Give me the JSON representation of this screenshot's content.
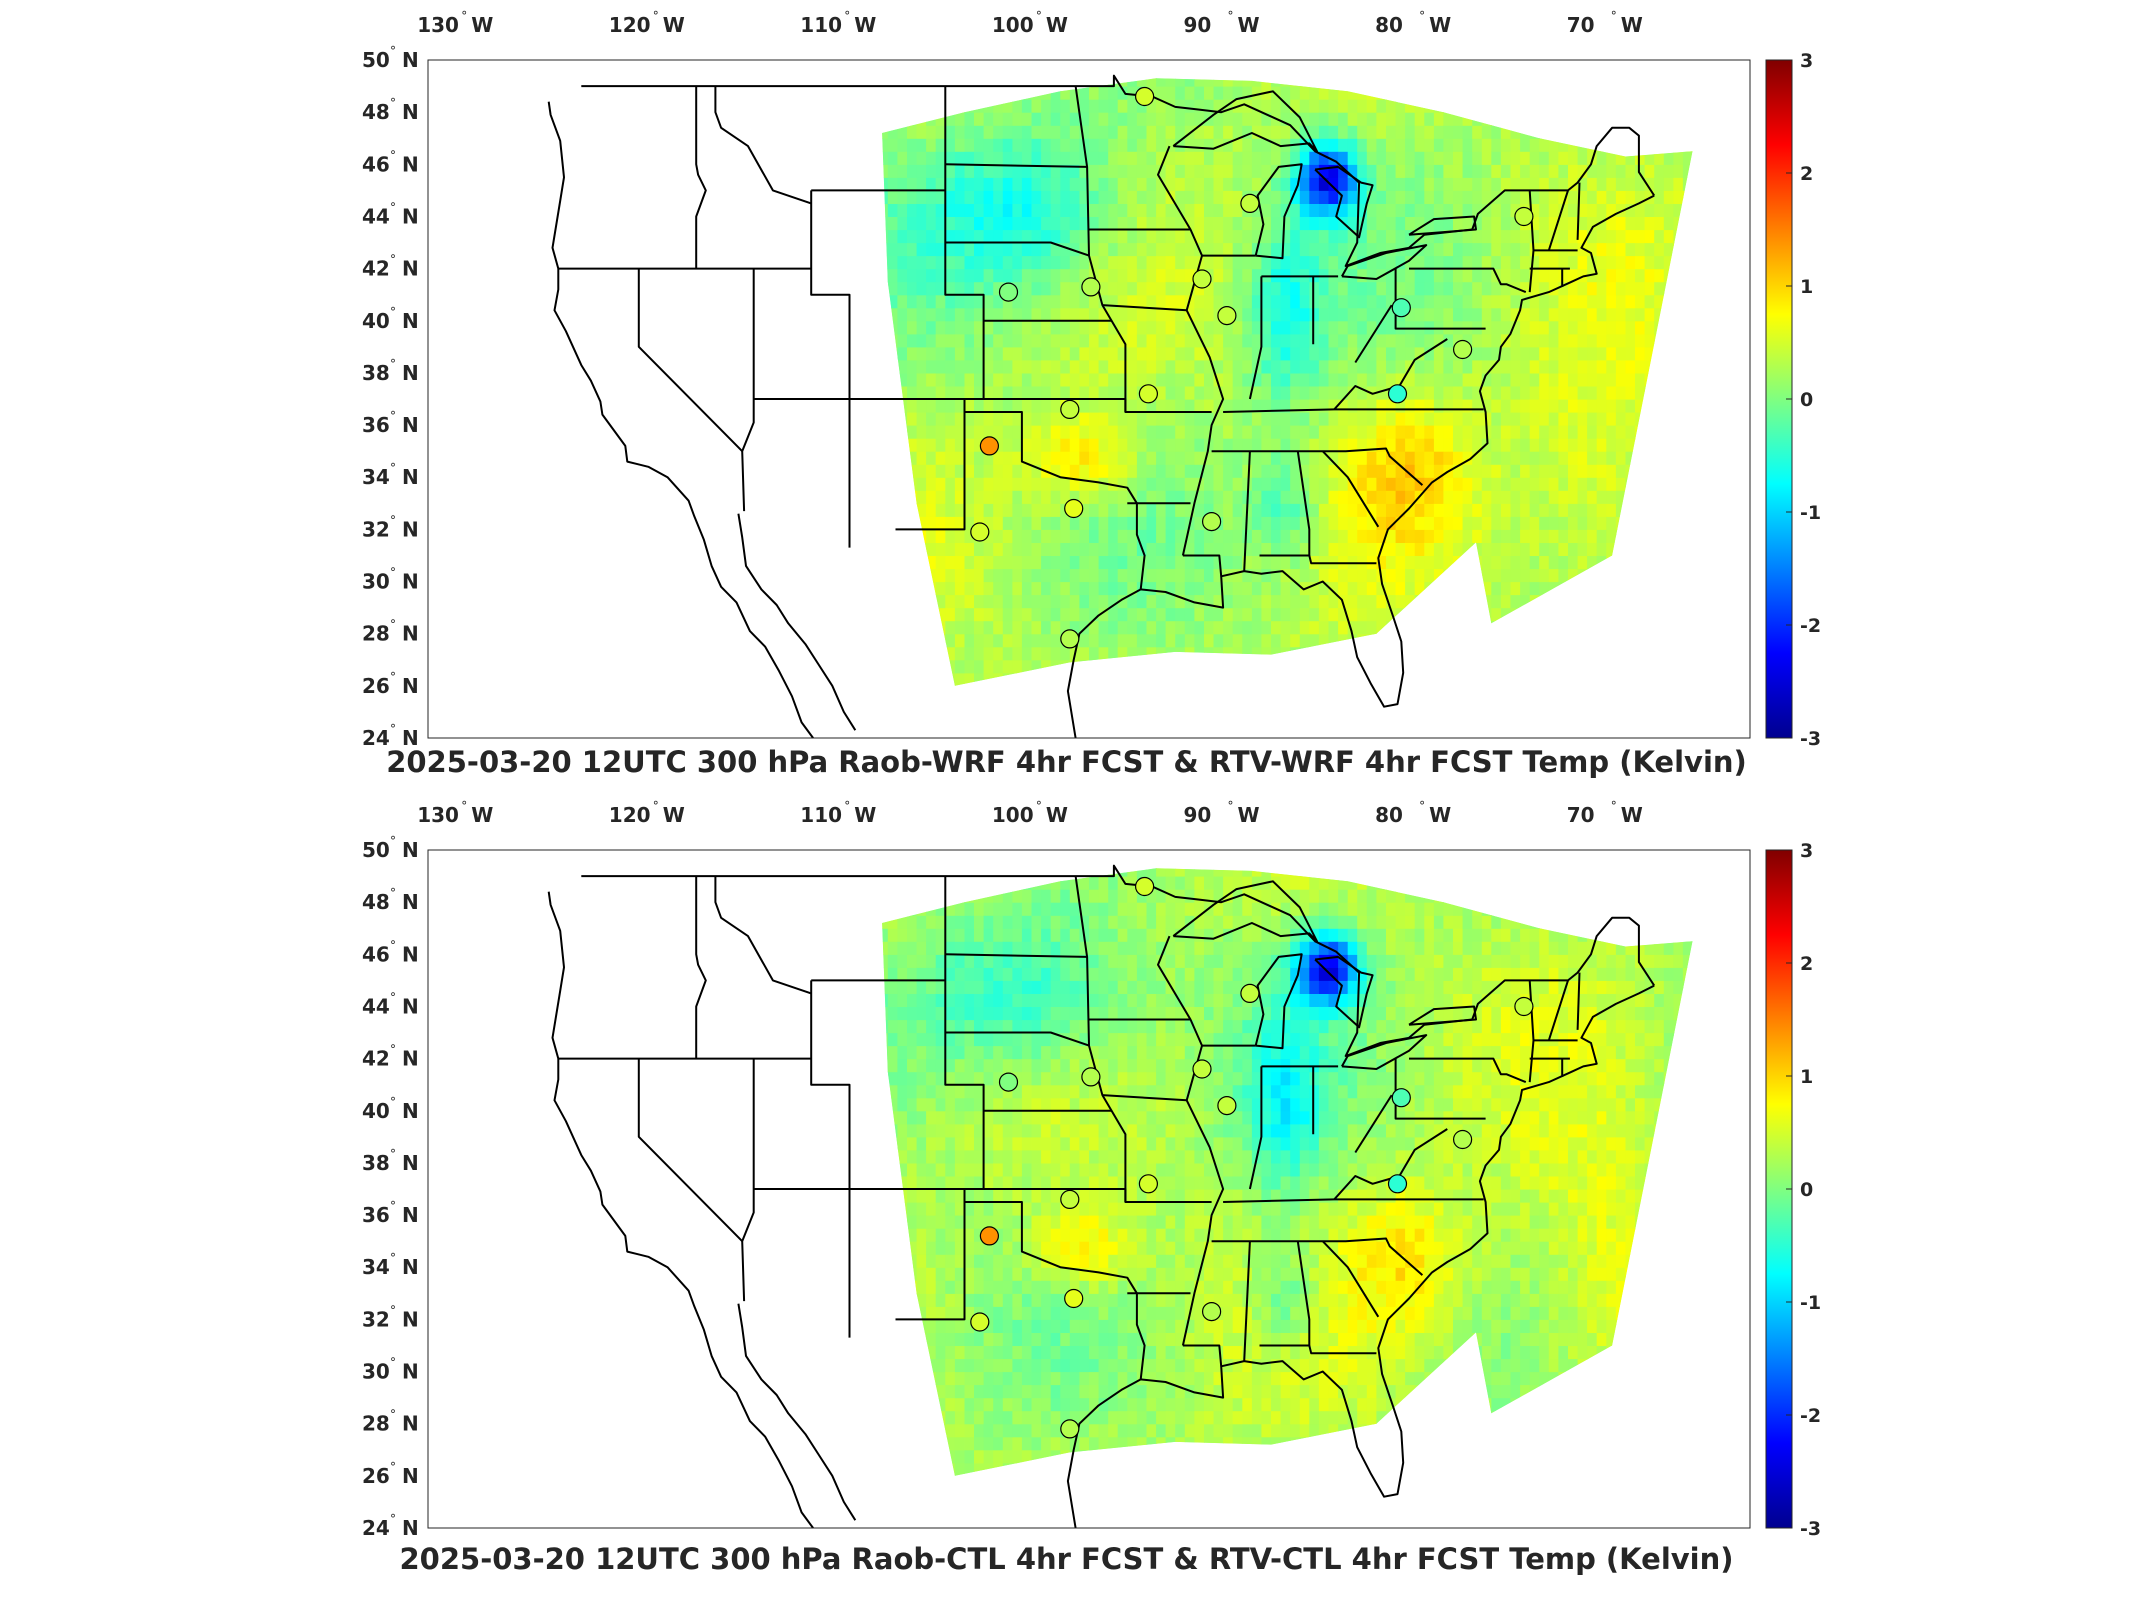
{
  "colors": {
    "colormap": [
      "#00008f",
      "#0000ff",
      "#0080ff",
      "#00ffff",
      "#80ff80",
      "#ffff00",
      "#ff8000",
      "#ff0000",
      "#800000"
    ],
    "background": "#ffffff",
    "station_marker": "#000000"
  },
  "map": {
    "projection": "lat-lon",
    "lon_range": [
      -131,
      -62
    ],
    "lat_range": [
      24,
      50
    ],
    "lon_ticks": [
      -130,
      -120,
      -110,
      -100,
      -90,
      -80,
      -70
    ],
    "lon_labels": [
      "130",
      "120",
      "110",
      "100",
      "90",
      "80",
      "70"
    ],
    "lon_suffix": "W",
    "lat_ticks": [
      50,
      48,
      46,
      44,
      42,
      40,
      38,
      36,
      34,
      32,
      30,
      28,
      26,
      24
    ],
    "lat_labels": [
      "50",
      "48",
      "46",
      "44",
      "42",
      "40",
      "38",
      "36",
      "34",
      "32",
      "30",
      "28",
      "26",
      "24"
    ],
    "lat_suffix": "N",
    "degree_symbol": "°",
    "stations": [
      {
        "lon": -93.6,
        "lat": 48.6,
        "value": 0.5
      },
      {
        "lon": -88.1,
        "lat": 44.5,
        "value": 0.4
      },
      {
        "lon": -73.8,
        "lat": 44.0,
        "value": 0.4
      },
      {
        "lon": -90.6,
        "lat": 41.6,
        "value": 0.4
      },
      {
        "lon": -100.7,
        "lat": 41.1,
        "value": 0.0
      },
      {
        "lon": -96.4,
        "lat": 41.3,
        "value": 0.3
      },
      {
        "lon": -80.2,
        "lat": 40.5,
        "value": -0.3
      },
      {
        "lon": -89.3,
        "lat": 40.2,
        "value": 0.4
      },
      {
        "lon": -77.0,
        "lat": 38.9,
        "value": 0.3
      },
      {
        "lon": -93.4,
        "lat": 37.2,
        "value": 0.5
      },
      {
        "lon": -80.4,
        "lat": 37.2,
        "value": -0.5
      },
      {
        "lon": -97.5,
        "lat": 36.6,
        "value": 0.4
      },
      {
        "lon": -101.7,
        "lat": 35.2,
        "value": 1.4
      },
      {
        "lon": -97.3,
        "lat": 32.8,
        "value": 0.6
      },
      {
        "lon": -102.2,
        "lat": 31.9,
        "value": 0.5
      },
      {
        "lon": -90.1,
        "lat": 32.3,
        "value": 0.3
      },
      {
        "lon": -97.5,
        "lat": 27.8,
        "value": 0.3
      }
    ]
  },
  "colorbar": {
    "ticks": [
      3,
      2,
      1,
      0,
      -1,
      -2,
      -3
    ],
    "tick_labels": [
      "3",
      "2",
      "1",
      "0",
      "-1",
      "-2",
      "-3"
    ],
    "range": [
      -3,
      3
    ]
  },
  "panels": [
    {
      "id": "raob-wrf",
      "title": "2025-03-20 12UTC 300 hPa Raob-WRF 4hr FCST & RTV-WRF 4hr FCST Temp (Kelvin)"
    },
    {
      "id": "raob-ctl",
      "title": "2025-03-20 12UTC 300 hPa Raob-CTL 4hr FCST & RTV-CTL 4hr FCST Temp (Kelvin)"
    }
  ]
}
